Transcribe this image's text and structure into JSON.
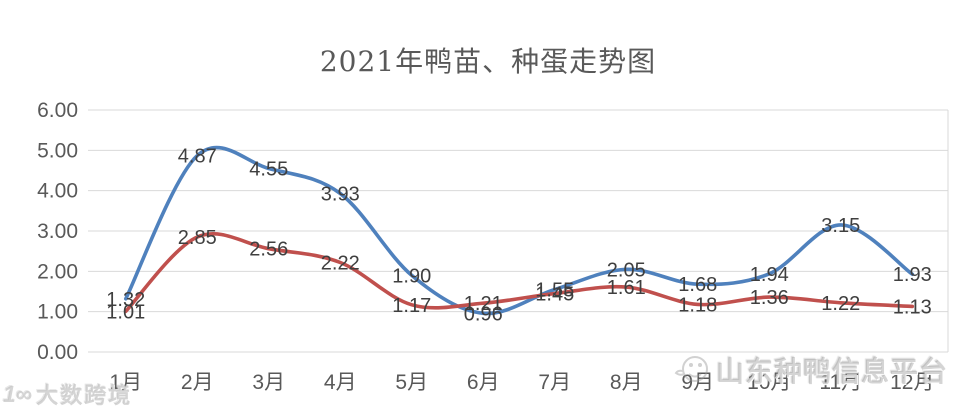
{
  "title": "2021年鸭苗、种蛋走势图",
  "chart_data": {
    "type": "line",
    "title": "2021年鸭苗、种蛋走势图",
    "categories": [
      "1月",
      "2月",
      "3月",
      "4月",
      "5月",
      "6月",
      "7月",
      "8月",
      "9月",
      "10月",
      "11月",
      "12月"
    ],
    "series": [
      {
        "name": "鸭苗",
        "color": "#4F81BD",
        "values": [
          1.32,
          4.87,
          4.55,
          3.93,
          1.9,
          0.96,
          1.55,
          2.05,
          1.68,
          1.94,
          3.15,
          1.93
        ],
        "labels": [
          "1.32",
          "4.87",
          "4.55",
          "3.93",
          "1.90",
          "0.96",
          "1.55",
          "2.05",
          "1.68",
          "1.94",
          "3.15",
          "1.93"
        ]
      },
      {
        "name": "种蛋",
        "color": "#C0504D",
        "values": [
          1.01,
          2.85,
          2.56,
          2.22,
          1.17,
          1.21,
          1.45,
          1.61,
          1.18,
          1.36,
          1.22,
          1.13
        ],
        "labels": [
          "1.01",
          "2.85",
          "2.56",
          "2.22",
          "1.17",
          "1.21",
          "1.45",
          "1.61",
          "1.18",
          "1.36",
          "1.22",
          "1.13"
        ]
      }
    ],
    "ylim": [
      0,
      6
    ],
    "ytick_labels": [
      "0.00",
      "1.00",
      "2.00",
      "3.00",
      "4.00",
      "5.00",
      "6.00"
    ],
    "grid": true,
    "legend": "none",
    "smooth": true,
    "label_color": "#3F3F3F",
    "axis_color": "#595959",
    "grid_color": "#D9D9D9"
  },
  "watermarks": {
    "bottom_left": {
      "logo_icon": "1∞",
      "text": "大数跨境"
    },
    "bottom_right": {
      "icon": "duck-logo",
      "text": "山东种鸭信息平台"
    }
  }
}
